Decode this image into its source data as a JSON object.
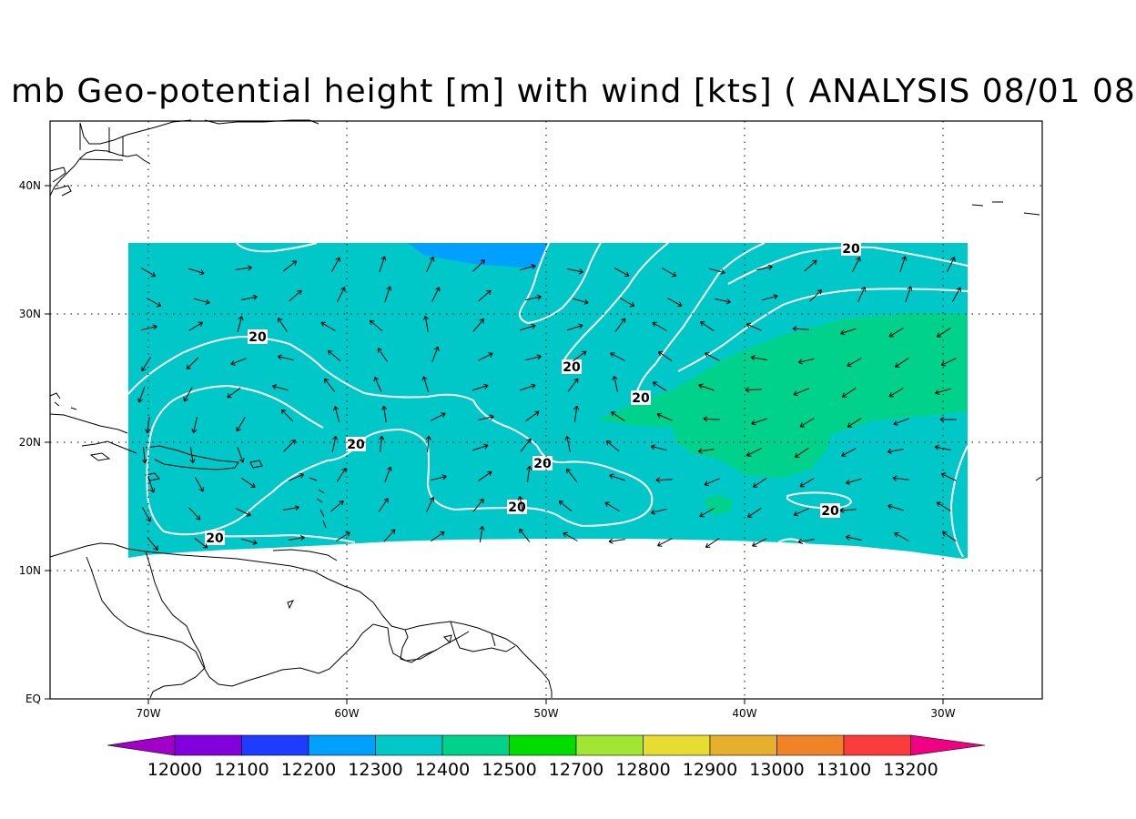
{
  "title": "mb Geo-potential height [m] with wind [kts] ( ANALYSIS 08/01 08",
  "map": {
    "x_ticks": [
      "70W",
      "60W",
      "50W",
      "40W",
      "30W"
    ],
    "y_ticks": [
      "40N",
      "30N",
      "20N",
      "10N",
      "EQ"
    ],
    "lon_range": [
      -75,
      -25
    ],
    "lat_range": [
      0,
      45
    ],
    "gridlines": "dotted",
    "contour_labels": [
      "20",
      "20",
      "20",
      "20",
      "20",
      "20",
      "20",
      "20"
    ]
  },
  "colorbar": {
    "labels": [
      "12000",
      "12100",
      "12200",
      "12300",
      "12400",
      "12500",
      "12700",
      "12800",
      "12900",
      "13000",
      "13100",
      "13200"
    ],
    "colors": [
      "#a000c8",
      "#8200dc",
      "#1e3cff",
      "#00a0ff",
      "#00c8c8",
      "#00d28c",
      "#00dc00",
      "#a0e632",
      "#e6dc32",
      "#e6af2d",
      "#f08228",
      "#fa3c3c",
      "#f00082"
    ]
  },
  "fill_colors": {
    "base": "#00c8c8",
    "high": "#00d28c",
    "low": "#00a0ff",
    "contour": "#ffffff",
    "wind_arrow": "#000000"
  }
}
